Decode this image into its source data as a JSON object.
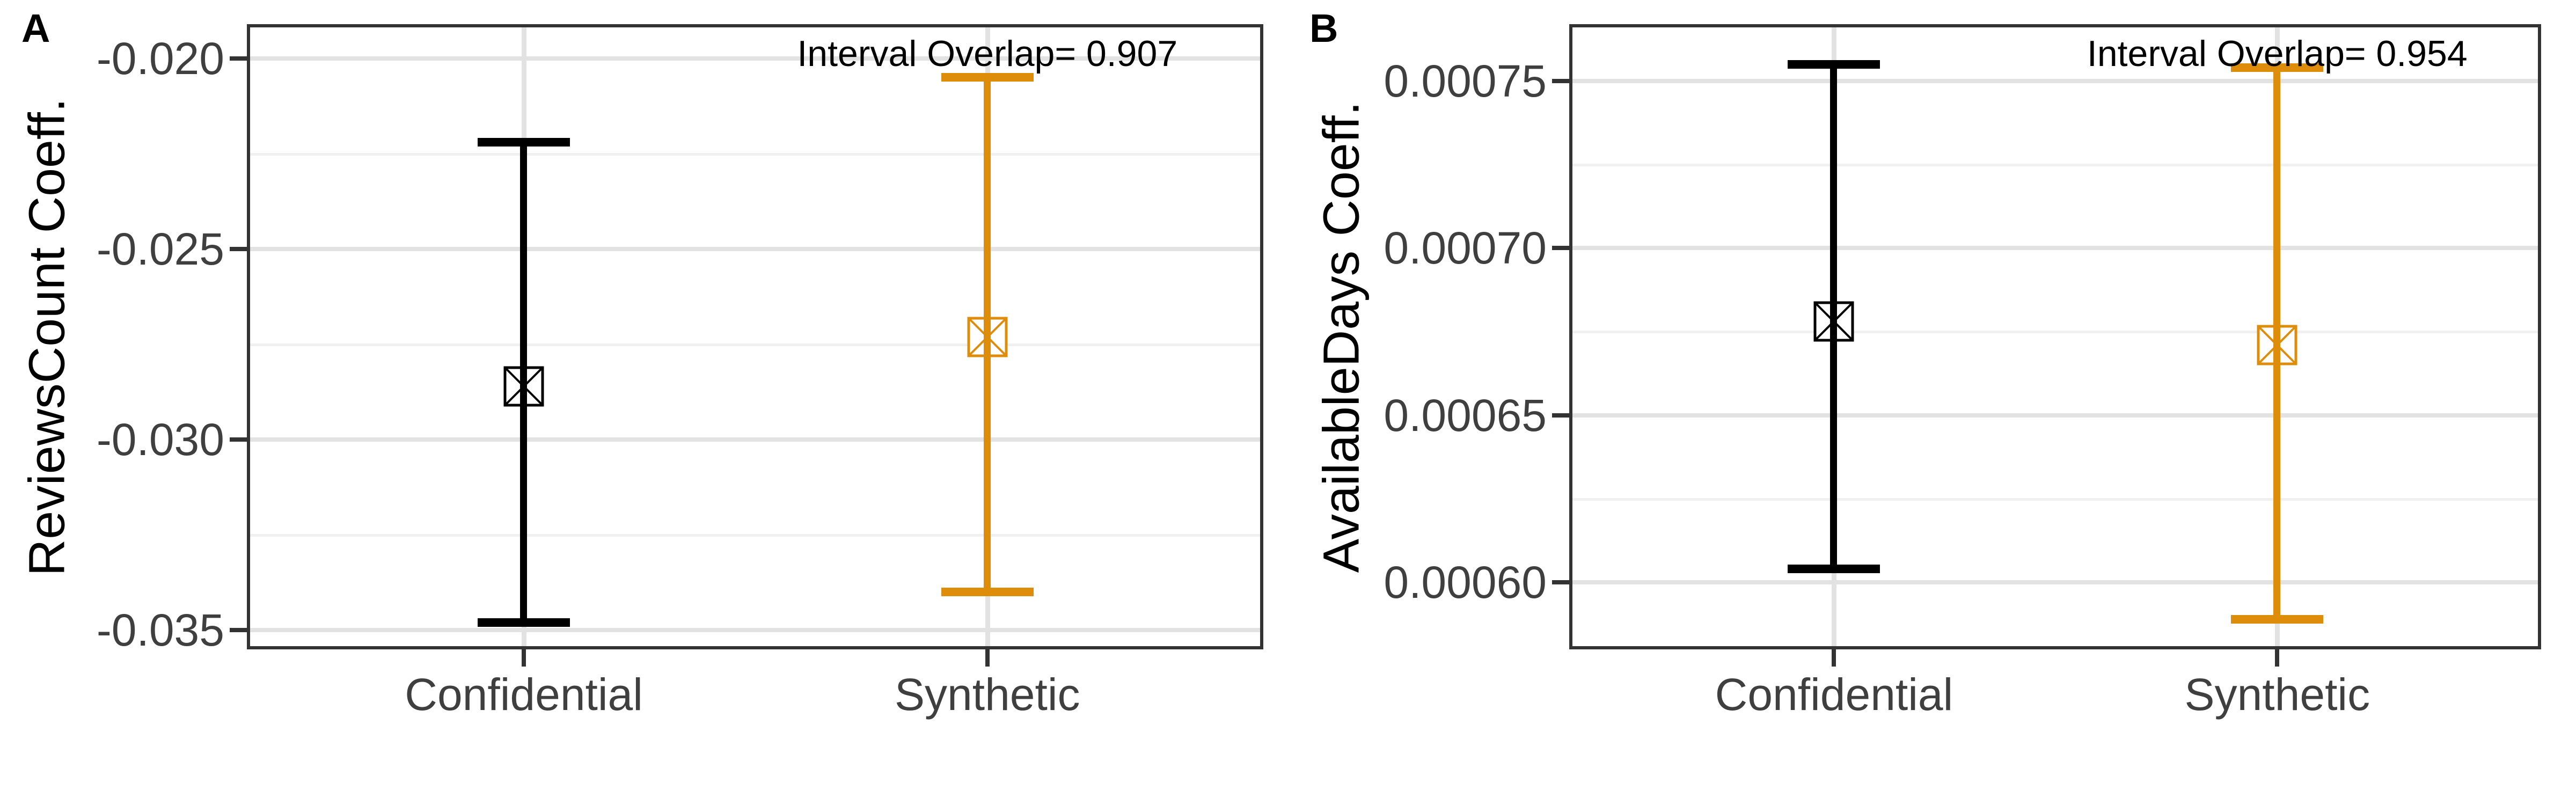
{
  "colors": {
    "confidential": "#000000",
    "synthetic": "#DE8D0B",
    "grid_major": "#E2E2E2",
    "grid_minor": "#F0F0F0",
    "panel_border": "#333333",
    "axis_text": "#3F3F3F",
    "background": "#FFFFFF"
  },
  "chart_data": [
    {
      "type": "errorbar",
      "tag": "A",
      "ylabel": "ReviewsCount Coeff.",
      "xlabel": "",
      "annotation": "Interval Overlap= 0.907",
      "interval_overlap": 0.907,
      "categories": [
        "Confidential",
        "Synthetic"
      ],
      "yticks": [
        -0.02,
        -0.025,
        -0.03,
        -0.035
      ],
      "ytick_labels": [
        "-0.020",
        "-0.025",
        "-0.030",
        "-0.035"
      ],
      "ylim": [
        -0.0355,
        -0.0191
      ],
      "grid": "horizontal major+minor, vertical at categories",
      "legend": "none",
      "marker_shape": "square with diagonal cross",
      "series": [
        {
          "name": "Confidential",
          "color": "#000000",
          "estimate": -0.0286,
          "ci_low": -0.0348,
          "ci_high": -0.0222
        },
        {
          "name": "Synthetic",
          "color": "#DE8D0B",
          "estimate": -0.0273,
          "ci_low": -0.034,
          "ci_high": -0.0205
        }
      ]
    },
    {
      "type": "errorbar",
      "tag": "B",
      "ylabel": "AvailableDays Coeff.",
      "xlabel": "",
      "annotation": "Interval Overlap= 0.954",
      "interval_overlap": 0.954,
      "categories": [
        "Confidential",
        "Synthetic"
      ],
      "yticks": [
        0.00075,
        0.0007,
        0.00065,
        0.0006
      ],
      "ytick_labels": [
        "0.00075",
        "0.00070",
        "0.00065",
        "0.00060"
      ],
      "ylim": [
        0.00058,
        0.000767
      ],
      "grid": "horizontal major+minor, vertical at categories",
      "legend": "none",
      "marker_shape": "square with diagonal cross",
      "series": [
        {
          "name": "Confidential",
          "color": "#000000",
          "estimate": 0.000678,
          "ci_low": 0.000604,
          "ci_high": 0.000755
        },
        {
          "name": "Synthetic",
          "color": "#DE8D0B",
          "estimate": 0.000671,
          "ci_low": 0.000589,
          "ci_high": 0.000754
        }
      ]
    }
  ]
}
